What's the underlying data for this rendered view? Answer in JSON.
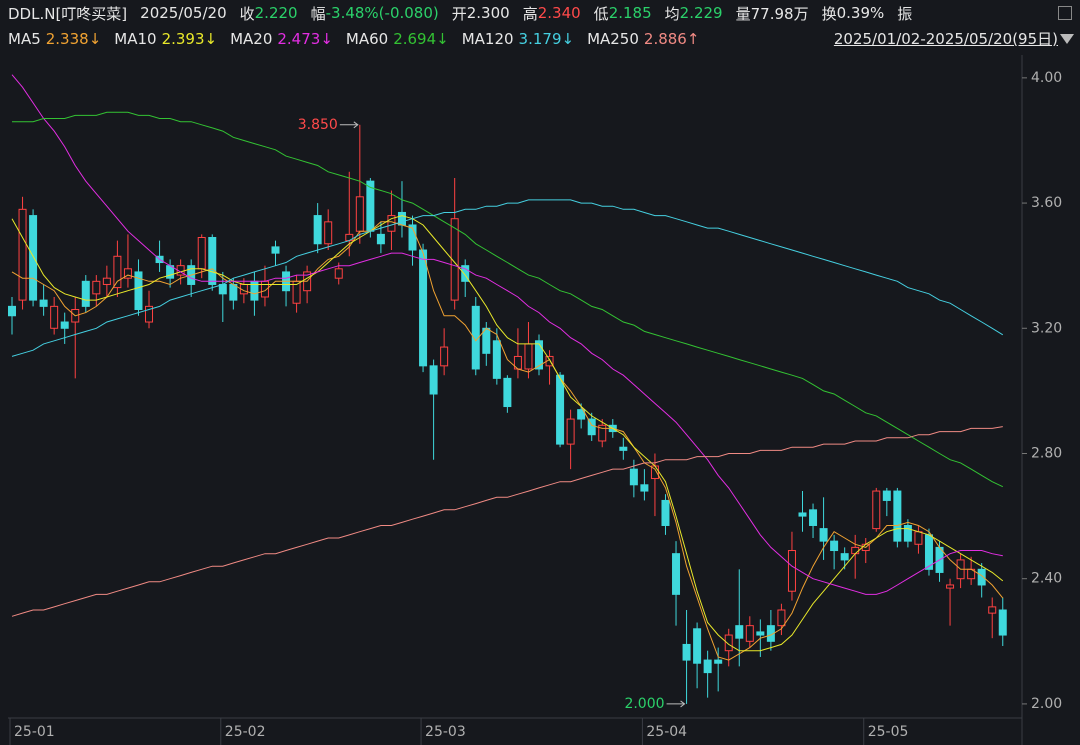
{
  "header": {
    "symbol": "DDL.N[叮咚买菜]",
    "date": "2025/05/20",
    "fields": [
      {
        "label": "收",
        "value": "2.220",
        "color": "#2bd16a"
      },
      {
        "label": "幅",
        "value": "-3.48%(-0.080)",
        "color": "#2bd16a"
      },
      {
        "label": "开",
        "value": "2.300",
        "color": "#e6e6e6"
      },
      {
        "label": "高",
        "value": "2.340",
        "color": "#ff4a4a"
      },
      {
        "label": "低",
        "value": "2.185",
        "color": "#2bd16a"
      },
      {
        "label": "均",
        "value": "2.229",
        "color": "#2bd16a"
      },
      {
        "label": "量",
        "value": "77.98万",
        "color": "#e6e6e6"
      },
      {
        "label": "换",
        "value": "0.39%",
        "color": "#e6e6e6"
      },
      {
        "label": "振"
      }
    ],
    "range": "2025/01/02-2025/05/20(95日)"
  },
  "chart_data": {
    "type": "candlestick",
    "up_color": "#ff4242",
    "down_color": "#3fd8dc",
    "grid": false,
    "categories": [
      "25-01",
      null,
      null,
      null,
      null,
      null,
      null,
      null,
      null,
      null,
      null,
      null,
      null,
      null,
      null,
      null,
      null,
      null,
      null,
      null,
      "25-02",
      null,
      null,
      null,
      null,
      null,
      null,
      null,
      null,
      null,
      null,
      null,
      null,
      null,
      null,
      null,
      null,
      null,
      null,
      "25-03",
      null,
      null,
      null,
      null,
      null,
      null,
      null,
      null,
      null,
      null,
      null,
      null,
      null,
      null,
      null,
      null,
      null,
      null,
      null,
      null,
      "25-04",
      null,
      null,
      null,
      null,
      null,
      null,
      null,
      null,
      null,
      null,
      null,
      null,
      null,
      null,
      null,
      null,
      null,
      null,
      null,
      null,
      "25-05",
      null,
      null,
      null,
      null,
      null,
      null,
      null,
      null,
      null,
      null,
      null,
      null,
      null
    ],
    "open": [
      3.27,
      3.29,
      3.56,
      3.29,
      3.2,
      3.22,
      3.22,
      3.35,
      3.31,
      3.34,
      3.33,
      3.36,
      3.38,
      3.22,
      3.43,
      3.4,
      3.37,
      3.4,
      3.39,
      3.49,
      3.34,
      3.34,
      3.31,
      3.35,
      3.3,
      3.46,
      3.38,
      3.28,
      3.32,
      3.56,
      3.47,
      3.36,
      3.48,
      3.51,
      3.67,
      3.5,
      3.51,
      3.57,
      3.53,
      3.45,
      3.08,
      3.08,
      3.29,
      3.4,
      3.27,
      3.2,
      3.16,
      3.04,
      3.07,
      3.07,
      3.16,
      3.08,
      3.05,
      2.83,
      2.94,
      2.91,
      2.84,
      2.89,
      2.82,
      2.75,
      2.7,
      2.72,
      2.65,
      2.48,
      2.19,
      2.24,
      2.14,
      2.14,
      2.17,
      2.25,
      2.2,
      2.23,
      2.25,
      2.25,
      2.36,
      2.61,
      2.62,
      2.56,
      2.52,
      2.48,
      2.48,
      2.49,
      2.56,
      2.68,
      2.68,
      2.57,
      2.51,
      2.54,
      2.5,
      2.37,
      2.4,
      2.4,
      2.43,
      2.29,
      2.3
    ],
    "high": [
      3.3,
      3.62,
      3.58,
      3.34,
      3.3,
      3.25,
      3.3,
      3.37,
      3.37,
      3.4,
      3.48,
      3.5,
      3.42,
      3.32,
      3.48,
      3.42,
      3.42,
      3.42,
      3.5,
      3.5,
      3.38,
      3.36,
      3.36,
      3.38,
      3.4,
      3.48,
      3.4,
      3.37,
      3.4,
      3.6,
      3.58,
      3.41,
      3.7,
      3.85,
      3.68,
      3.54,
      3.64,
      3.67,
      3.56,
      3.47,
      3.1,
      3.2,
      3.68,
      3.42,
      3.3,
      3.22,
      3.2,
      3.05,
      3.2,
      3.22,
      3.18,
      3.13,
      3.06,
      2.94,
      2.96,
      2.93,
      2.91,
      2.91,
      2.85,
      2.78,
      2.75,
      2.8,
      2.67,
      2.52,
      2.3,
      2.26,
      2.17,
      2.18,
      2.24,
      2.43,
      2.28,
      2.27,
      2.3,
      2.32,
      2.55,
      2.68,
      2.64,
      2.66,
      2.54,
      2.5,
      2.54,
      2.53,
      2.69,
      2.69,
      2.69,
      2.59,
      2.57,
      2.56,
      2.52,
      2.4,
      2.48,
      2.47,
      2.45,
      2.34,
      2.34
    ],
    "low": [
      3.18,
      3.26,
      3.27,
      3.24,
      3.18,
      3.15,
      3.04,
      3.25,
      3.27,
      3.3,
      3.3,
      3.33,
      3.24,
      3.2,
      3.38,
      3.33,
      3.34,
      3.3,
      3.36,
      3.32,
      3.22,
      3.26,
      3.28,
      3.24,
      3.27,
      3.4,
      3.27,
      3.25,
      3.28,
      3.44,
      3.45,
      3.34,
      3.43,
      3.47,
      3.49,
      3.44,
      3.45,
      3.49,
      3.4,
      3.06,
      2.78,
      3.05,
      3.26,
      3.3,
      3.05,
      3.08,
      3.02,
      2.93,
      3.04,
      3.04,
      3.05,
      3.02,
      2.82,
      2.75,
      2.88,
      2.84,
      2.82,
      2.85,
      2.78,
      2.66,
      2.65,
      2.6,
      2.54,
      2.25,
      2.0,
      2.05,
      2.02,
      2.04,
      2.12,
      2.12,
      2.18,
      2.15,
      2.17,
      2.22,
      2.33,
      2.55,
      2.53,
      2.46,
      2.43,
      2.43,
      2.4,
      2.45,
      2.55,
      2.6,
      2.5,
      2.5,
      2.48,
      2.41,
      2.39,
      2.25,
      2.37,
      2.38,
      2.34,
      2.21,
      2.185
    ],
    "close": [
      3.24,
      3.58,
      3.29,
      3.27,
      3.27,
      3.2,
      3.26,
      3.27,
      3.35,
      3.36,
      3.43,
      3.39,
      3.26,
      3.27,
      3.41,
      3.36,
      3.4,
      3.34,
      3.49,
      3.34,
      3.31,
      3.29,
      3.34,
      3.29,
      3.35,
      3.44,
      3.32,
      3.35,
      3.38,
      3.47,
      3.54,
      3.39,
      3.5,
      3.62,
      3.51,
      3.47,
      3.56,
      3.53,
      3.45,
      3.08,
      2.99,
      3.14,
      3.55,
      3.35,
      3.07,
      3.12,
      3.04,
      2.95,
      3.11,
      3.15,
      3.07,
      3.11,
      2.83,
      2.91,
      2.91,
      2.86,
      2.89,
      2.87,
      2.81,
      2.7,
      2.68,
      2.76,
      2.57,
      2.35,
      2.14,
      2.13,
      2.1,
      2.13,
      2.22,
      2.21,
      2.25,
      2.22,
      2.2,
      2.3,
      2.49,
      2.6,
      2.57,
      2.52,
      2.49,
      2.46,
      2.5,
      2.51,
      2.68,
      2.65,
      2.52,
      2.52,
      2.55,
      2.43,
      2.42,
      2.38,
      2.46,
      2.43,
      2.38,
      2.31,
      2.22
    ],
    "series": [
      {
        "name": "MA5",
        "color": "#f0a232",
        "label": "2.338↓",
        "values": [
          3.38,
          3.36,
          3.36,
          3.34,
          3.32,
          3.27,
          3.24,
          3.25,
          3.27,
          3.3,
          3.35,
          3.37,
          3.36,
          3.35,
          3.35,
          3.34,
          3.36,
          3.37,
          3.38,
          3.39,
          3.36,
          3.34,
          3.32,
          3.31,
          3.32,
          3.35,
          3.35,
          3.35,
          3.35,
          3.39,
          3.42,
          3.43,
          3.46,
          3.51,
          3.51,
          3.54,
          3.54,
          3.53,
          3.52,
          3.44,
          3.32,
          3.24,
          3.24,
          3.21,
          3.16,
          3.2,
          3.18,
          3.1,
          3.07,
          3.06,
          3.08,
          3.1,
          3.04,
          3.0,
          2.95,
          2.89,
          2.88,
          2.88,
          2.87,
          2.82,
          2.77,
          2.75,
          2.69,
          2.58,
          2.44,
          2.34,
          2.24,
          2.15,
          2.14,
          2.16,
          2.18,
          2.21,
          2.22,
          2.24,
          2.29,
          2.37,
          2.44,
          2.5,
          2.55,
          2.53,
          2.51,
          2.5,
          2.53,
          2.57,
          2.57,
          2.58,
          2.57,
          2.55,
          2.5,
          2.46,
          2.43,
          2.43,
          2.41,
          2.38,
          2.338
        ]
      },
      {
        "name": "MA10",
        "color": "#e8e82a",
        "label": "2.393↓",
        "values": [
          3.55,
          3.49,
          3.43,
          3.37,
          3.33,
          3.31,
          3.3,
          3.29,
          3.29,
          3.3,
          3.31,
          3.32,
          3.33,
          3.34,
          3.36,
          3.37,
          3.38,
          3.39,
          3.39,
          3.38,
          3.37,
          3.35,
          3.34,
          3.34,
          3.34,
          3.34,
          3.34,
          3.34,
          3.36,
          3.38,
          3.41,
          3.44,
          3.47,
          3.49,
          3.51,
          3.53,
          3.55,
          3.56,
          3.55,
          3.53,
          3.49,
          3.45,
          3.41,
          3.37,
          3.32,
          3.27,
          3.21,
          3.17,
          3.15,
          3.15,
          3.15,
          3.1,
          3.04,
          2.98,
          2.95,
          2.92,
          2.9,
          2.88,
          2.86,
          2.82,
          2.79,
          2.76,
          2.71,
          2.6,
          2.48,
          2.36,
          2.26,
          2.22,
          2.19,
          2.17,
          2.17,
          2.17,
          2.18,
          2.19,
          2.22,
          2.27,
          2.32,
          2.36,
          2.4,
          2.44,
          2.48,
          2.51,
          2.53,
          2.55,
          2.56,
          2.56,
          2.55,
          2.54,
          2.52,
          2.5,
          2.48,
          2.46,
          2.44,
          2.42,
          2.393
        ]
      },
      {
        "name": "MA20",
        "color": "#e22ee2",
        "label": "2.473↓",
        "values": [
          4.01,
          3.97,
          3.92,
          3.87,
          3.83,
          3.78,
          3.72,
          3.67,
          3.63,
          3.59,
          3.55,
          3.51,
          3.48,
          3.45,
          3.42,
          3.4,
          3.38,
          3.36,
          3.35,
          3.35,
          3.35,
          3.35,
          3.35,
          3.35,
          3.35,
          3.36,
          3.36,
          3.37,
          3.37,
          3.38,
          3.39,
          3.4,
          3.4,
          3.41,
          3.42,
          3.43,
          3.44,
          3.44,
          3.43,
          3.42,
          3.42,
          3.41,
          3.4,
          3.39,
          3.37,
          3.36,
          3.34,
          3.32,
          3.3,
          3.27,
          3.25,
          3.22,
          3.2,
          3.17,
          3.15,
          3.12,
          3.1,
          3.07,
          3.05,
          3.02,
          2.99,
          2.96,
          2.93,
          2.9,
          2.86,
          2.82,
          2.78,
          2.73,
          2.69,
          2.64,
          2.59,
          2.54,
          2.5,
          2.47,
          2.44,
          2.42,
          2.4,
          2.39,
          2.38,
          2.37,
          2.36,
          2.35,
          2.35,
          2.36,
          2.38,
          2.4,
          2.42,
          2.44,
          2.46,
          2.48,
          2.49,
          2.49,
          2.49,
          2.48,
          2.473
        ]
      },
      {
        "name": "MA60",
        "color": "#33c233",
        "label": "2.694↓",
        "values": [
          3.86,
          3.86,
          3.86,
          3.87,
          3.87,
          3.87,
          3.88,
          3.88,
          3.88,
          3.89,
          3.89,
          3.89,
          3.88,
          3.88,
          3.87,
          3.87,
          3.86,
          3.86,
          3.85,
          3.84,
          3.83,
          3.81,
          3.8,
          3.79,
          3.78,
          3.77,
          3.75,
          3.74,
          3.73,
          3.72,
          3.7,
          3.69,
          3.68,
          3.67,
          3.65,
          3.64,
          3.63,
          3.61,
          3.6,
          3.58,
          3.56,
          3.54,
          3.52,
          3.5,
          3.47,
          3.45,
          3.43,
          3.41,
          3.39,
          3.37,
          3.36,
          3.34,
          3.32,
          3.31,
          3.29,
          3.27,
          3.26,
          3.24,
          3.22,
          3.21,
          3.19,
          3.18,
          3.17,
          3.16,
          3.15,
          3.14,
          3.13,
          3.12,
          3.11,
          3.1,
          3.09,
          3.08,
          3.07,
          3.06,
          3.05,
          3.04,
          3.02,
          3.0,
          2.99,
          2.97,
          2.95,
          2.93,
          2.92,
          2.9,
          2.88,
          2.86,
          2.84,
          2.82,
          2.8,
          2.78,
          2.77,
          2.75,
          2.73,
          2.71,
          2.694
        ]
      },
      {
        "name": "MA120",
        "color": "#45cfe0",
        "label": "3.179↓",
        "values": [
          3.11,
          3.12,
          3.13,
          3.15,
          3.16,
          3.17,
          3.18,
          3.19,
          3.2,
          3.22,
          3.23,
          3.24,
          3.25,
          3.26,
          3.27,
          3.29,
          3.3,
          3.31,
          3.32,
          3.33,
          3.34,
          3.36,
          3.37,
          3.38,
          3.39,
          3.4,
          3.41,
          3.43,
          3.44,
          3.45,
          3.46,
          3.47,
          3.48,
          3.5,
          3.51,
          3.52,
          3.53,
          3.54,
          3.55,
          3.56,
          3.56,
          3.57,
          3.57,
          3.58,
          3.58,
          3.59,
          3.59,
          3.6,
          3.6,
          3.61,
          3.61,
          3.61,
          3.61,
          3.61,
          3.6,
          3.6,
          3.59,
          3.59,
          3.58,
          3.58,
          3.57,
          3.56,
          3.56,
          3.55,
          3.54,
          3.53,
          3.52,
          3.52,
          3.51,
          3.5,
          3.49,
          3.48,
          3.47,
          3.46,
          3.45,
          3.44,
          3.43,
          3.42,
          3.41,
          3.4,
          3.39,
          3.38,
          3.37,
          3.36,
          3.35,
          3.33,
          3.32,
          3.31,
          3.29,
          3.28,
          3.26,
          3.24,
          3.22,
          3.2,
          3.179
        ]
      },
      {
        "name": "MA250",
        "color": "#f08a84",
        "label": "2.886↑",
        "values": [
          2.28,
          2.29,
          2.3,
          2.3,
          2.31,
          2.32,
          2.33,
          2.34,
          2.35,
          2.35,
          2.36,
          2.37,
          2.38,
          2.39,
          2.39,
          2.4,
          2.41,
          2.42,
          2.43,
          2.44,
          2.44,
          2.45,
          2.46,
          2.47,
          2.48,
          2.48,
          2.49,
          2.5,
          2.51,
          2.52,
          2.53,
          2.53,
          2.54,
          2.55,
          2.56,
          2.57,
          2.57,
          2.58,
          2.59,
          2.6,
          2.61,
          2.62,
          2.62,
          2.63,
          2.64,
          2.65,
          2.66,
          2.66,
          2.67,
          2.68,
          2.69,
          2.7,
          2.71,
          2.71,
          2.72,
          2.73,
          2.74,
          2.75,
          2.75,
          2.76,
          2.77,
          2.77,
          2.78,
          2.78,
          2.78,
          2.79,
          2.79,
          2.79,
          2.8,
          2.8,
          2.8,
          2.81,
          2.81,
          2.81,
          2.82,
          2.82,
          2.82,
          2.83,
          2.83,
          2.83,
          2.84,
          2.84,
          2.84,
          2.85,
          2.85,
          2.85,
          2.86,
          2.86,
          2.87,
          2.87,
          2.87,
          2.88,
          2.88,
          2.88,
          2.886
        ]
      }
    ],
    "ylim": [
      1.955,
      4.073
    ],
    "yticks": [
      {
        "value": 2,
        "label": "2.00"
      },
      {
        "value": 2.4,
        "label": "2.40"
      },
      {
        "value": 2.8,
        "label": "2.80"
      },
      {
        "value": 3.2,
        "label": "3.20"
      },
      {
        "value": 3.6,
        "label": "3.60"
      },
      {
        "value": 4,
        "label": "4.00"
      }
    ],
    "annotations": [
      {
        "index": 33,
        "value": 3.85,
        "label": "3.850",
        "color": "#ff4a4a"
      },
      {
        "index": 64,
        "value": 2.0,
        "label": "2.000",
        "color": "#2bd16a"
      }
    ]
  }
}
